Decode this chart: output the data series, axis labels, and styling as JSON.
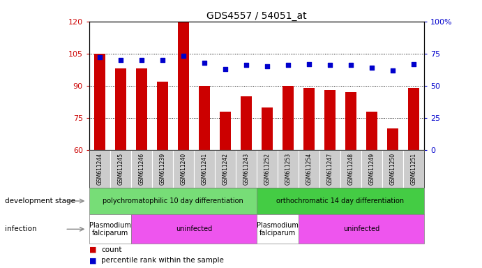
{
  "title": "GDS4557 / 54051_at",
  "samples": [
    "GSM611244",
    "GSM611245",
    "GSM611246",
    "GSM611239",
    "GSM611240",
    "GSM611241",
    "GSM611242",
    "GSM611243",
    "GSM611252",
    "GSM611253",
    "GSM611254",
    "GSM611247",
    "GSM611248",
    "GSM611249",
    "GSM611250",
    "GSM611251"
  ],
  "counts": [
    105,
    98,
    98,
    92,
    120,
    90,
    78,
    85,
    80,
    90,
    89,
    88,
    87,
    78,
    70,
    89
  ],
  "percentile_ranks": [
    72,
    70,
    70,
    70,
    73,
    68,
    63,
    66,
    65,
    66,
    67,
    66,
    66,
    64,
    62,
    67
  ],
  "ylim_left": [
    60,
    120
  ],
  "ylim_right": [
    0,
    100
  ],
  "yticks_left": [
    60,
    75,
    90,
    105,
    120
  ],
  "yticks_right": [
    0,
    25,
    50,
    75,
    100
  ],
  "bar_color": "#cc0000",
  "scatter_color": "#0000cc",
  "dev_stage_groups": [
    {
      "label": "polychromatophilic 10 day differentiation",
      "start": 0,
      "end": 8,
      "color": "#77dd77"
    },
    {
      "label": "orthochromatic 14 day differentiation",
      "start": 8,
      "end": 16,
      "color": "#44cc44"
    }
  ],
  "infection_groups": [
    {
      "label": "Plasmodium\nfalciparum",
      "start": 0,
      "end": 2,
      "color": "#ffffff"
    },
    {
      "label": "uninfected",
      "start": 2,
      "end": 8,
      "color": "#ee55ee"
    },
    {
      "label": "Plasmodium\nfalciparum",
      "start": 8,
      "end": 10,
      "color": "#ffffff"
    },
    {
      "label": "uninfected",
      "start": 10,
      "end": 16,
      "color": "#ee55ee"
    }
  ],
  "bar_bottom": 60,
  "xlabel_color": "#cc0000",
  "ylabel_right_color": "#0000cc",
  "annotation_dev_stage": "development stage",
  "annotation_infection": "infection",
  "legend_count": "count",
  "legend_percentile": "percentile rank within the sample"
}
